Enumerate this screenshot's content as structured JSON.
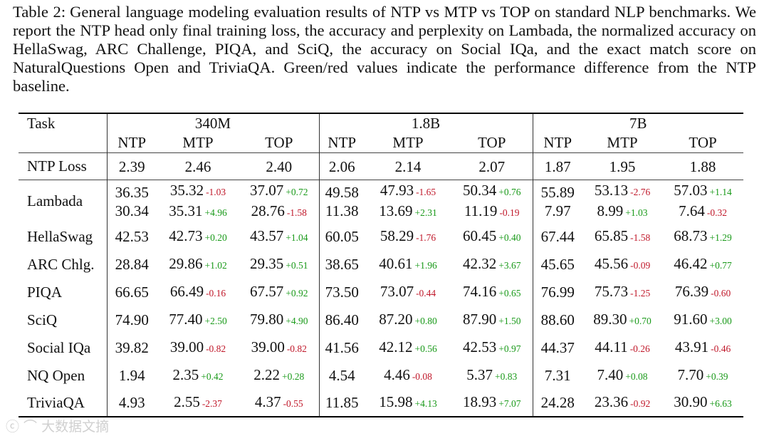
{
  "caption": {
    "label": "Table 2:",
    "text": "General language modeling evaluation results of NTP vs MTP vs TOP on standard NLP benchmarks. We report the NTP head only final training loss, the accuracy and perplexity on Lambada, the normalized accuracy on HellaSwag, ARC Challenge, PIQA, and SciQ, the accuracy on Social IQa, and the exact match score on NaturalQuestions Open and TriviaQA. Green/red values indicate the performance difference from the NTP baseline."
  },
  "table": {
    "task_header": "Task",
    "groups": [
      "340M",
      "1.8B",
      "7B"
    ],
    "methods": [
      "NTP",
      "MTP",
      "TOP"
    ],
    "rows": [
      {
        "task": "NTP Loss",
        "cells": [
          {
            "v": "2.39"
          },
          {
            "v": "2.46"
          },
          {
            "v": "2.40"
          },
          {
            "v": "2.06"
          },
          {
            "v": "2.14"
          },
          {
            "v": "2.07"
          },
          {
            "v": "1.87"
          },
          {
            "v": "1.95"
          },
          {
            "v": "1.88"
          }
        ]
      },
      {
        "task": "Lambada",
        "cells": [
          {
            "v": "36.35",
            "v2": "30.34"
          },
          {
            "v": "35.32",
            "d": "-1.03",
            "v2": "35.31",
            "d2": "+4.96"
          },
          {
            "v": "37.07",
            "d": "+0.72",
            "v2": "28.76",
            "d2": "-1.58"
          },
          {
            "v": "49.58",
            "v2": "11.38"
          },
          {
            "v": "47.93",
            "d": "-1.65",
            "v2": "13.69",
            "d2": "+2.31"
          },
          {
            "v": "50.34",
            "d": "+0.76",
            "v2": "11.19",
            "d2": "-0.19"
          },
          {
            "v": "55.89",
            "v2": "7.97"
          },
          {
            "v": "53.13",
            "d": "-2.76",
            "v2": "8.99",
            "d2": "+1.03"
          },
          {
            "v": "57.03",
            "d": "+1.14",
            "v2": "7.64",
            "d2": "-0.32"
          }
        ]
      },
      {
        "task": "HellaSwag",
        "cells": [
          {
            "v": "42.53"
          },
          {
            "v": "42.73",
            "d": "+0.20"
          },
          {
            "v": "43.57",
            "d": "+1.04"
          },
          {
            "v": "60.05"
          },
          {
            "v": "58.29",
            "d": "-1.76"
          },
          {
            "v": "60.45",
            "d": "+0.40"
          },
          {
            "v": "67.44"
          },
          {
            "v": "65.85",
            "d": "-1.58"
          },
          {
            "v": "68.73",
            "d": "+1.29"
          }
        ]
      },
      {
        "task": "ARC Chlg.",
        "cells": [
          {
            "v": "28.84"
          },
          {
            "v": "29.86",
            "d": "+1.02"
          },
          {
            "v": "29.35",
            "d": "+0.51"
          },
          {
            "v": "38.65"
          },
          {
            "v": "40.61",
            "d": "+1.96"
          },
          {
            "v": "42.32",
            "d": "+3.67"
          },
          {
            "v": "45.65"
          },
          {
            "v": "45.56",
            "d": "-0.09"
          },
          {
            "v": "46.42",
            "d": "+0.77"
          }
        ]
      },
      {
        "task": "PIQA",
        "cells": [
          {
            "v": "66.65"
          },
          {
            "v": "66.49",
            "d": "-0.16"
          },
          {
            "v": "67.57",
            "d": "+0.92"
          },
          {
            "v": "73.50"
          },
          {
            "v": "73.07",
            "d": "-0.44"
          },
          {
            "v": "74.16",
            "d": "+0.65"
          },
          {
            "v": "76.99"
          },
          {
            "v": "75.73",
            "d": "-1.25"
          },
          {
            "v": "76.39",
            "d": "-0.60"
          }
        ]
      },
      {
        "task": "SciQ",
        "cells": [
          {
            "v": "74.90"
          },
          {
            "v": "77.40",
            "d": "+2.50"
          },
          {
            "v": "79.80",
            "d": "+4.90"
          },
          {
            "v": "86.40"
          },
          {
            "v": "87.20",
            "d": "+0.80"
          },
          {
            "v": "87.90",
            "d": "+1.50"
          },
          {
            "v": "88.60"
          },
          {
            "v": "89.30",
            "d": "+0.70"
          },
          {
            "v": "91.60",
            "d": "+3.00"
          }
        ]
      },
      {
        "task": "Social IQa",
        "cells": [
          {
            "v": "39.82"
          },
          {
            "v": "39.00",
            "d": "-0.82"
          },
          {
            "v": "39.00",
            "d": "-0.82"
          },
          {
            "v": "41.56"
          },
          {
            "v": "42.12",
            "d": "+0.56"
          },
          {
            "v": "42.53",
            "d": "+0.97"
          },
          {
            "v": "44.37"
          },
          {
            "v": "44.11",
            "d": "-0.26"
          },
          {
            "v": "43.91",
            "d": "-0.46"
          }
        ]
      },
      {
        "task": "NQ Open",
        "cells": [
          {
            "v": "1.94"
          },
          {
            "v": "2.35",
            "d": "+0.42"
          },
          {
            "v": "2.22",
            "d": "+0.28"
          },
          {
            "v": "4.54"
          },
          {
            "v": "4.46",
            "d": "-0.08"
          },
          {
            "v": "5.37",
            "d": "+0.83"
          },
          {
            "v": "7.31"
          },
          {
            "v": "7.40",
            "d": "+0.08"
          },
          {
            "v": "7.70",
            "d": "+0.39"
          }
        ]
      },
      {
        "task": "TriviaQA",
        "cells": [
          {
            "v": "4.93"
          },
          {
            "v": "2.55",
            "d": "-2.37"
          },
          {
            "v": "4.37",
            "d": "-0.55"
          },
          {
            "v": "11.85"
          },
          {
            "v": "15.98",
            "d": "+4.13"
          },
          {
            "v": "18.93",
            "d": "+7.07"
          },
          {
            "v": "24.28"
          },
          {
            "v": "23.36",
            "d": "-0.92"
          },
          {
            "v": "30.90",
            "d": "+6.63"
          }
        ]
      }
    ]
  },
  "colors": {
    "positive": "#1a9a1a",
    "negative": "#c0182a"
  }
}
